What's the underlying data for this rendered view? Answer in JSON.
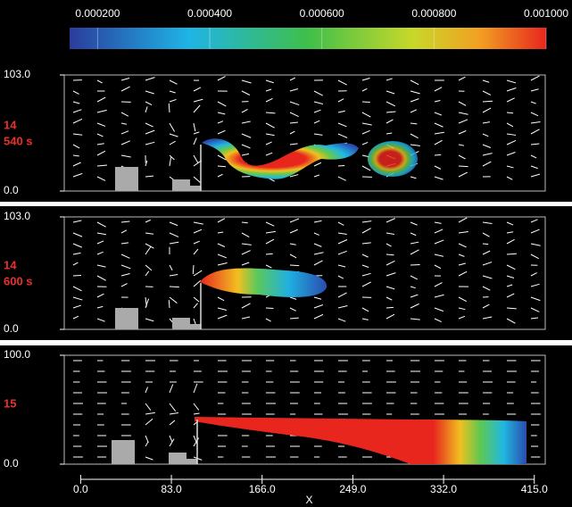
{
  "chart_data": [
    {
      "type": "vector_field",
      "colorbar": {
        "range": [
          0.00015,
          0.001
        ],
        "ticks": [
          {
            "value": 0.0002,
            "label": "0.000200"
          },
          {
            "value": 0.0004,
            "label": "0.000400"
          },
          {
            "value": 0.0006,
            "label": "0.000600"
          },
          {
            "value": 0.0008,
            "label": "0.000800"
          },
          {
            "value": 0.001,
            "label": "0.001000"
          }
        ]
      },
      "annotation": [
        "14",
        "540 s"
      ],
      "xlim": [
        -15,
        425
      ],
      "ylim": [
        0,
        103
      ],
      "yticks": [
        {
          "value": 0,
          "label": "0.0"
        },
        {
          "value": 103,
          "label": "103.0"
        }
      ]
    },
    {
      "type": "vector_field",
      "annotation": [
        "14",
        "600 s"
      ],
      "xlim": [
        -15,
        425
      ],
      "ylim": [
        0,
        103
      ],
      "yticks": [
        {
          "value": 0,
          "label": "0.0"
        },
        {
          "value": 103,
          "label": "103.0"
        }
      ]
    },
    {
      "type": "vector_field",
      "annotation": [
        "15"
      ],
      "xlabel": "X",
      "xlim": [
        -15,
        425
      ],
      "ylim": [
        0,
        100
      ],
      "yticks": [
        {
          "value": 0,
          "label": "0.0"
        },
        {
          "value": 100,
          "label": "100.0"
        }
      ],
      "xticks": [
        {
          "value": 0,
          "label": "0.0"
        },
        {
          "value": 83,
          "label": "83.0"
        },
        {
          "value": 166,
          "label": "166.0"
        },
        {
          "value": 249,
          "label": "249.0"
        },
        {
          "value": 332,
          "label": "332.0"
        },
        {
          "value": 415,
          "label": "415.0"
        }
      ]
    }
  ]
}
